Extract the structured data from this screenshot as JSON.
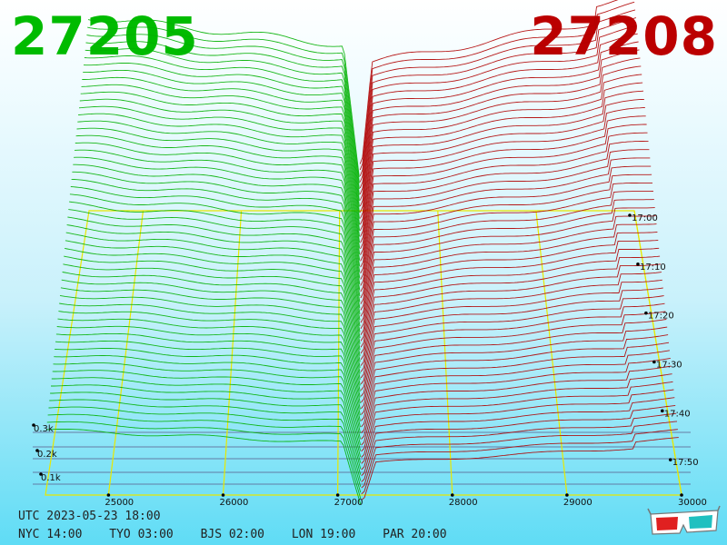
{
  "prices": {
    "bid": "27205",
    "ask": "27208",
    "bid_color": "#00bb00",
    "ask_color": "#bb0000"
  },
  "chart_data": {
    "type": "area",
    "title": "",
    "x_axis": {
      "ticks": [
        "25000",
        "26000",
        "27000",
        "28000",
        "29000",
        "30000"
      ],
      "range": [
        24450,
        30000
      ]
    },
    "depth_axis": {
      "ticks": [
        "0.1k",
        "0.2k",
        "0.3k"
      ]
    },
    "time_axis": {
      "ticks": [
        "17:00",
        "17:10",
        "17:20",
        "17:30",
        "17:40",
        "17:50"
      ]
    },
    "series": [
      {
        "name": "bids",
        "color": "#00b000",
        "x_range": [
          24450,
          27205
        ]
      },
      {
        "name": "asks",
        "color": "#b00000",
        "x_range": [
          27208,
          30000
        ]
      }
    ],
    "grid_color": "#e8e800"
  },
  "footer": {
    "utc": "UTC 2023-05-23 18:00",
    "zones": [
      "NYC 14:00",
      "TYO 03:00",
      "BJS 02:00",
      "LON 19:00",
      "PAR 20:00"
    ]
  },
  "icons": {
    "glasses": "3d-glasses-icon"
  }
}
